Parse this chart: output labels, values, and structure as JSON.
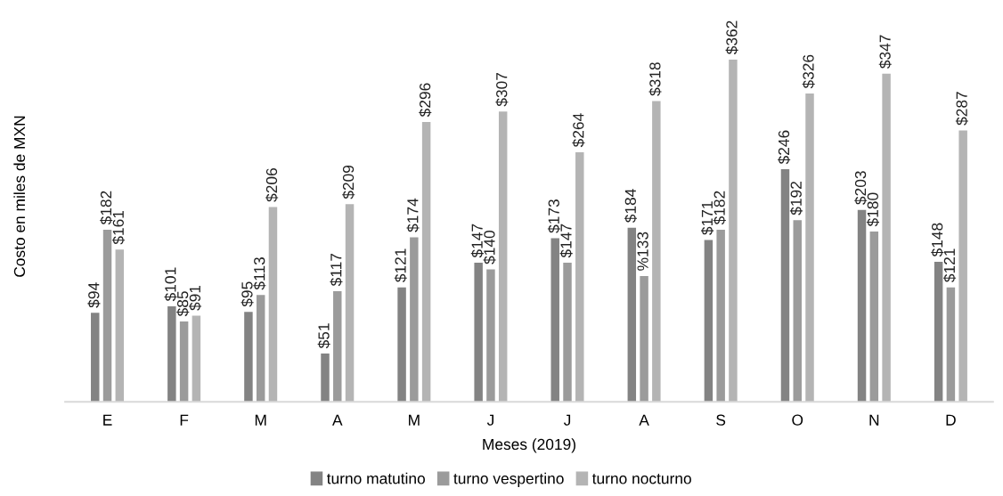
{
  "chart_data": {
    "type": "bar",
    "xlabel": "Meses (2019)",
    "ylabel": "Costo en miles de MXN",
    "categories": [
      "E",
      "F",
      "M",
      "A",
      "M",
      "J",
      "J",
      "A",
      "S",
      "O",
      "N",
      "D"
    ],
    "series": [
      {
        "name": "turno matutino",
        "color": "#838383",
        "values": [
          94,
          101,
          95,
          51,
          121,
          147,
          173,
          184,
          171,
          246,
          203,
          148
        ],
        "value_labels": [
          "$94",
          "$101",
          "$95",
          "$51",
          "$121",
          "$147",
          "$173",
          "$184",
          "$171",
          "$246",
          "$203",
          "$148"
        ]
      },
      {
        "name": "turno vespertino",
        "color": "#9b9b9b",
        "values": [
          182,
          85,
          113,
          117,
          174,
          140,
          147,
          133,
          182,
          192,
          180,
          121
        ],
        "value_labels": [
          "$182",
          "$85",
          "$113",
          "$117",
          "$174",
          "$140",
          "$147",
          "%133",
          "$182",
          "$192",
          "$180",
          "$121"
        ]
      },
      {
        "name": "turno nocturno",
        "color": "#b4b4b4",
        "values": [
          161,
          91,
          206,
          209,
          296,
          307,
          264,
          318,
          362,
          326,
          347,
          287
        ],
        "value_labels": [
          "$161",
          "$91",
          "$206",
          "$209",
          "$296",
          "$307",
          "$264",
          "$318",
          "$362",
          "$326",
          "$347",
          "$287"
        ]
      }
    ],
    "grid": false,
    "legend": "bottom",
    "tick_labels": "x"
  }
}
